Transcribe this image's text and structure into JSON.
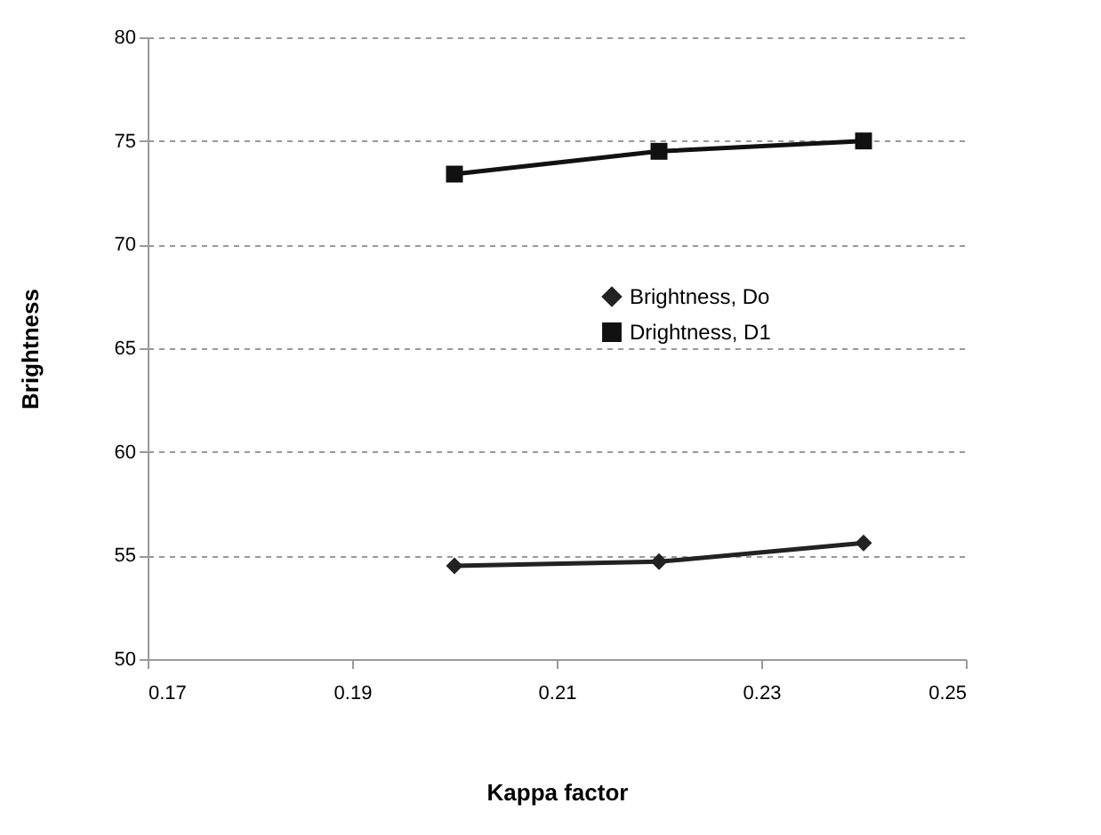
{
  "chart_data": {
    "type": "line",
    "xlabel": "Kappa factor",
    "ylabel": "Brightness",
    "x": [
      0.2,
      0.22,
      0.24
    ],
    "series": [
      {
        "name": "Brightness, Do",
        "color": "#222222",
        "marker": "diamond",
        "values": [
          54.5,
          54.7,
          55.6
        ]
      },
      {
        "name": "Drightness, D1",
        "color": "#111111",
        "marker": "square",
        "values": [
          73.4,
          74.5,
          75.0
        ]
      }
    ],
    "xlim": [
      0.17,
      0.25
    ],
    "xticks": [
      0.17,
      0.19,
      0.21,
      0.23,
      0.25
    ],
    "ylim": [
      50,
      80
    ],
    "yticks": [
      50,
      55,
      60,
      65,
      70,
      75,
      80
    ],
    "grid": "y",
    "legend": "right",
    "line_style": "solid"
  }
}
